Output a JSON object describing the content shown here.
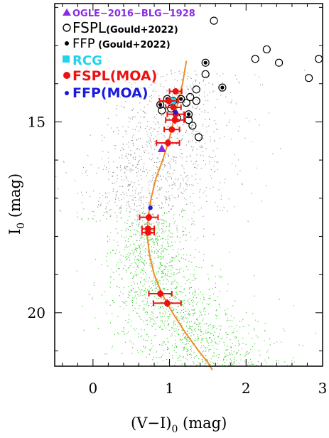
{
  "chart_data": {
    "type": "scatter",
    "xlabel_main": "(V−I)",
    "xlabel_sub": "0",
    "xlabel_unit": " (mag)",
    "ylabel_main": "I",
    "ylabel_sub": "0",
    "ylabel_unit": " (mag)",
    "xlim": [
      -0.5,
      3.0
    ],
    "ylim": [
      21.4,
      11.9
    ],
    "x_ticks": [
      0,
      1,
      2,
      3
    ],
    "y_ticks": [
      15,
      20
    ],
    "grid": false,
    "legend_position": "top-left",
    "legend": [
      {
        "text": "OGLE−2016−BLG−1928",
        "marker": "triangle",
        "color": "#8a2be2"
      },
      {
        "text_main": "FSPL",
        "text_small": "(Gould+2022)",
        "marker": "open-circle",
        "color": "#000000"
      },
      {
        "text_main": "FFP",
        "text_small": " (Gould+2022)",
        "marker": "dot",
        "color": "#000000"
      },
      {
        "text": "RCG",
        "marker": "square",
        "color": "#22d3ee"
      },
      {
        "text": "FSPL(MOA)",
        "marker": "filled-circle",
        "color": "#ee1111"
      },
      {
        "text": "FFP(MOA)",
        "marker": "dot",
        "color": "#1a1adc"
      }
    ],
    "series": [
      {
        "name": "OGLE−2016−BLG−1928",
        "marker": "triangle",
        "color": "#8a2be2",
        "points": [
          [
            0.9,
            15.7
          ]
        ]
      },
      {
        "name": "FSPL(Gould+2022)",
        "marker": "open-circle",
        "color": "#000000",
        "points": [
          [
            1.58,
            12.35
          ],
          [
            2.27,
            13.1
          ],
          [
            2.12,
            13.35
          ],
          [
            2.43,
            13.45
          ],
          [
            2.95,
            13.35
          ],
          [
            2.82,
            13.85
          ],
          [
            1.47,
            13.45
          ],
          [
            1.47,
            13.75
          ],
          [
            1.69,
            14.1
          ],
          [
            1.35,
            14.15
          ],
          [
            1.27,
            14.35
          ],
          [
            1.35,
            14.45
          ],
          [
            0.97,
            14.4
          ],
          [
            1.05,
            14.45
          ],
          [
            1.15,
            14.4
          ],
          [
            1.22,
            14.5
          ],
          [
            1.25,
            14.8
          ],
          [
            1.25,
            14.95
          ],
          [
            1.1,
            14.9
          ],
          [
            1.3,
            15.1
          ],
          [
            1.38,
            15.4
          ],
          [
            0.88,
            14.55
          ],
          [
            0.9,
            14.7
          ],
          [
            1.02,
            14.65
          ]
        ]
      },
      {
        "name": "FFP(Gould+2022)",
        "marker": "dot",
        "color": "#000000",
        "points": [
          [
            1.47,
            13.45
          ],
          [
            1.69,
            14.1
          ],
          [
            0.97,
            14.4
          ],
          [
            1.15,
            14.4
          ],
          [
            0.88,
            14.55
          ],
          [
            1.25,
            14.8
          ]
        ]
      },
      {
        "name": "RCG",
        "marker": "square",
        "color": "#22d3ee",
        "points": [
          [
            1.04,
            14.45
          ]
        ]
      },
      {
        "name": "FSPL(MOA)",
        "marker": "filled-circle",
        "color": "#ee1111",
        "points": [
          [
            1.08,
            14.2,
            0.08,
            0.08
          ],
          [
            0.99,
            14.45,
            0.12,
            0.1
          ],
          [
            1.05,
            14.62,
            0.1,
            0.08
          ],
          [
            1.08,
            14.8,
            0.11,
            0.1
          ],
          [
            1.07,
            14.95,
            0.12,
            0.1
          ],
          [
            1.03,
            15.2,
            0.1,
            0.08
          ],
          [
            0.98,
            15.55,
            0.15,
            0.1
          ],
          [
            0.73,
            17.5,
            0.12,
            0.1
          ],
          [
            0.72,
            17.8,
            0.08,
            0.08
          ],
          [
            0.72,
            17.9,
            0.08,
            0.08
          ],
          [
            0.88,
            19.5,
            0.15,
            0.1
          ],
          [
            0.97,
            19.75,
            0.18,
            0.1
          ]
        ]
      },
      {
        "name": "FFP(MOA)",
        "marker": "dot",
        "color": "#1a1adc",
        "points": [
          [
            0.75,
            17.25
          ],
          [
            1.08,
            14.75
          ]
        ]
      }
    ],
    "isochrone_color": "#f28c28",
    "isochrone": [
      [
        1.22,
        13.4
      ],
      [
        1.17,
        14.0
      ],
      [
        1.11,
        14.5
      ],
      [
        1.05,
        15.0
      ],
      [
        0.99,
        15.5
      ],
      [
        0.91,
        16.0
      ],
      [
        0.82,
        16.5
      ],
      [
        0.76,
        17.0
      ],
      [
        0.72,
        17.5
      ],
      [
        0.71,
        18.0
      ],
      [
        0.74,
        18.5
      ],
      [
        0.8,
        19.0
      ],
      [
        0.9,
        19.5
      ],
      [
        1.04,
        20.0
      ],
      [
        1.2,
        20.5
      ],
      [
        1.38,
        21.0
      ],
      [
        1.5,
        21.3
      ],
      [
        1.56,
        21.5
      ]
    ],
    "field_stars_upper_color": "#8c8c8c",
    "field_stars_lower_color": "#2ecc1e"
  }
}
